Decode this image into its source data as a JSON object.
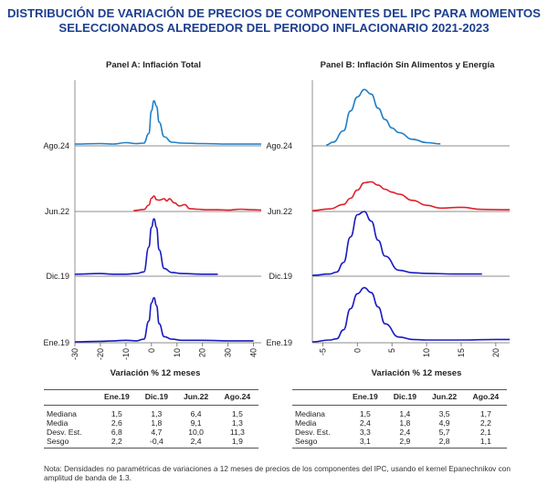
{
  "title": {
    "line1": "DISTRIBUCIÓN DE VARIACIÓN DE PRECIOS DE COMPONENTES DEL IPC PARA MOMENTOS",
    "line2": "SELECCIONADOS ALREDEDOR DEL PERIODO INFLACIONARIO 2021-2023"
  },
  "colors": {
    "title": "#1d3f8f",
    "ago24": "#1f7fc6",
    "jun22": "#e0202a",
    "dic19": "#1a1ac0",
    "ene19": "#1a1ac0"
  },
  "chart_data": [
    {
      "type": "line",
      "title": "Panel A:  Inflación Total",
      "xlabel": "Variación % 12 meses",
      "x_ticks": [
        "-30",
        "-20",
        "-10",
        "0",
        "10",
        "20",
        "30",
        "40"
      ],
      "xlim": [
        -30,
        43
      ],
      "series": [
        {
          "name": "Ago.24",
          "x": [
            -30,
            -20,
            -15,
            -10,
            -6,
            -3,
            -1,
            0,
            1,
            2,
            3,
            5,
            8,
            12,
            20,
            30,
            40,
            43
          ],
          "y": [
            0.02,
            0.03,
            0.02,
            0.05,
            0.03,
            0.04,
            0.25,
            0.75,
            0.97,
            0.85,
            0.5,
            0.18,
            0.06,
            0.04,
            0.03,
            0.02,
            0.02,
            0.02
          ]
        },
        {
          "name": "Jun.22",
          "x": [
            -7,
            -3,
            -1,
            0,
            1,
            2,
            3,
            5,
            6,
            7,
            9,
            11,
            13,
            15,
            18,
            22,
            26,
            30,
            35,
            40,
            43
          ],
          "y": [
            0.0,
            0.04,
            0.2,
            0.45,
            0.53,
            0.4,
            0.38,
            0.43,
            0.35,
            0.43,
            0.28,
            0.17,
            0.22,
            0.07,
            0.05,
            0.03,
            0.03,
            0.02,
            0.05,
            0.03,
            0.02
          ]
        },
        {
          "name": "Dic.19",
          "x": [
            -30,
            -20,
            -15,
            -10,
            -6,
            -3,
            -1,
            0,
            1,
            2,
            3,
            5,
            8,
            12,
            20,
            26
          ],
          "y": [
            0.02,
            0.03,
            0.02,
            0.02,
            0.03,
            0.06,
            0.5,
            0.85,
            1.0,
            0.85,
            0.45,
            0.12,
            0.05,
            0.03,
            0.02,
            0.02
          ]
        },
        {
          "name": "Ene.19",
          "x": [
            -30,
            -20,
            -15,
            -10,
            -6,
            -3,
            -1,
            0,
            1,
            2,
            3,
            5,
            8,
            12,
            20,
            30,
            40
          ],
          "y": [
            0.0,
            0.01,
            0.02,
            0.03,
            0.02,
            0.05,
            0.4,
            0.75,
            0.85,
            0.7,
            0.35,
            0.1,
            0.05,
            0.03,
            0.03,
            0.02,
            0.02
          ]
        }
      ]
    },
    {
      "type": "line",
      "title": "Panel B:  Inflación Sin Alimentos y Energía",
      "xlabel": "Variación % 12 meses",
      "x_ticks": [
        "-5",
        "0",
        "5",
        "10",
        "15",
        "20"
      ],
      "xlim": [
        -6.5,
        22
      ],
      "series": [
        {
          "name": "Ago.24",
          "x": [
            -4.5,
            -3.5,
            -2,
            -1,
            0,
            1,
            2,
            3,
            4,
            5,
            6,
            8,
            10,
            12
          ],
          "y": [
            0.0,
            0.05,
            0.25,
            0.6,
            0.85,
            0.98,
            0.9,
            0.65,
            0.45,
            0.3,
            0.22,
            0.1,
            0.04,
            0.02
          ]
        },
        {
          "name": "Jun.22",
          "x": [
            -6.5,
            -4,
            -2,
            -1,
            0,
            1,
            2,
            3,
            4,
            5,
            6,
            8,
            10,
            12,
            15,
            18,
            22
          ],
          "y": [
            0.0,
            0.04,
            0.15,
            0.3,
            0.5,
            0.68,
            0.7,
            0.62,
            0.52,
            0.45,
            0.4,
            0.25,
            0.13,
            0.06,
            0.08,
            0.03,
            0.02
          ]
        },
        {
          "name": "Dic.19",
          "x": [
            -6.5,
            -4,
            -3,
            -2,
            -1,
            0,
            1,
            2,
            3,
            4,
            6,
            8,
            10,
            14,
            18
          ],
          "y": [
            0.0,
            0.02,
            0.05,
            0.2,
            0.6,
            0.95,
            1.0,
            0.85,
            0.55,
            0.3,
            0.08,
            0.04,
            0.03,
            0.02,
            0.02
          ]
        },
        {
          "name": "Ene.19",
          "x": [
            -6.5,
            -4,
            -3,
            -2,
            -1,
            0,
            1,
            2,
            3,
            4,
            6,
            8,
            10,
            15,
            20,
            22
          ],
          "y": [
            0.0,
            0.03,
            0.05,
            0.2,
            0.55,
            0.8,
            0.9,
            0.82,
            0.58,
            0.3,
            0.08,
            0.04,
            0.03,
            0.03,
            0.04,
            0.04
          ]
        }
      ]
    }
  ],
  "tables": {
    "panel_a": {
      "headers": [
        "",
        "Ene.19",
        "Dic.19",
        "Jun.22",
        "Ago.24"
      ],
      "rows": [
        [
          "Mediana",
          "1,5",
          "1,3",
          "6,4",
          "1,5"
        ],
        [
          "Media",
          "2,6",
          "1,8",
          "9,1",
          "1,3"
        ],
        [
          "Desv. Est.",
          "6,8",
          "4,7",
          "10,0",
          "11,3"
        ],
        [
          "Sesgo",
          "2,2",
          "-0,4",
          "2,4",
          "1,9"
        ]
      ]
    },
    "panel_b": {
      "headers": [
        "",
        "Ene.19",
        "Dic.19",
        "Jun.22",
        "Ago.24"
      ],
      "rows": [
        [
          "Mediana",
          "1,5",
          "1,4",
          "3,5",
          "1,7"
        ],
        [
          "Media",
          "2,4",
          "1,8",
          "4,9",
          "2,2"
        ],
        [
          "Desv. Est.",
          "3,3",
          "2,4",
          "5,7",
          "2,1"
        ],
        [
          "Sesgo",
          "3,1",
          "2,9",
          "2,8",
          "1,1"
        ]
      ]
    }
  },
  "note": "Nota: Densidades no paramétricas de variaciones a 12 meses de precios de los componentes del IPC, usando el kernel Epanechnikov con amplitud de banda de 1.3."
}
